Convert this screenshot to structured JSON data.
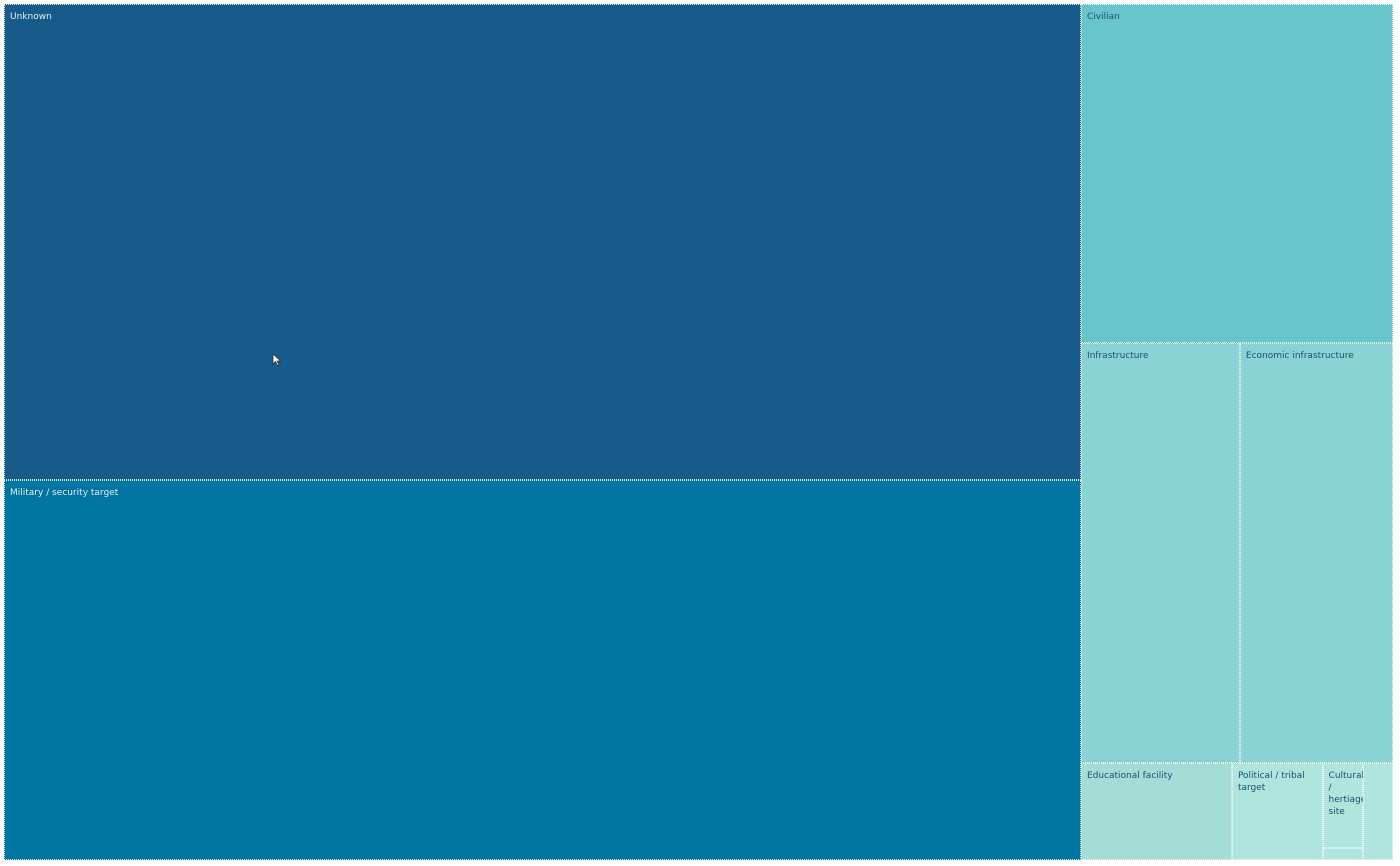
{
  "chart_data": {
    "type": "treemap",
    "title": "",
    "items": [
      {
        "label": "Unknown",
        "value": 1045,
        "color": "#175b8a",
        "text_color": "#e6eef5"
      },
      {
        "label": "Military / security target",
        "value": 836,
        "color": "#0075a2",
        "text_color": "#e6eef5"
      },
      {
        "label": "Civilian",
        "value": 216,
        "color": "#68c5cc",
        "text_color": "#1c4f74"
      },
      {
        "label": "Infrastructure",
        "value": 136,
        "color": "#89d3d4",
        "text_color": "#1c4f74"
      },
      {
        "label": "Economic infrastructure",
        "value": 131,
        "color": "#89d3d4",
        "text_color": "#1c4f74"
      },
      {
        "label": "Educational facility",
        "value": 30,
        "color": "#a3ddd6",
        "text_color": "#1c4f74"
      },
      {
        "label": "Political / tribal target",
        "value": 18,
        "color": "#b0e5dd",
        "text_color": "#1c4f74"
      },
      {
        "label": "Cultural / hertiage site",
        "value": 7,
        "color": "#b0e5dd",
        "text_color": "#1c4f74"
      },
      {
        "label": "",
        "value": 6,
        "color": "#b0e5dd",
        "text_color": "#1c4f74"
      },
      {
        "label": "",
        "value": 1,
        "color": "#b0e5dd",
        "text_color": "#1c4f74"
      }
    ]
  }
}
